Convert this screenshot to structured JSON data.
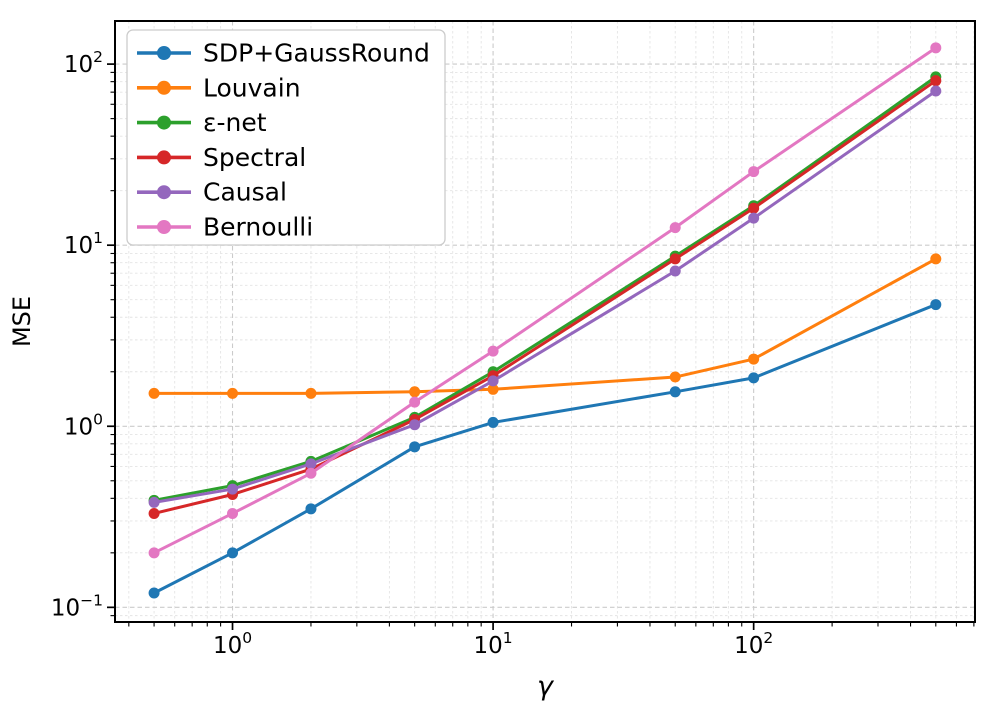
{
  "chart_data": {
    "type": "line",
    "title": "",
    "xlabel": "γ",
    "ylabel": "MSE",
    "xscale": "log",
    "yscale": "log",
    "xlim": [
      0.354,
      707
    ],
    "ylim": [
      0.083,
      173
    ],
    "grid": {
      "major": true,
      "minor": true,
      "style": "dashed"
    },
    "legend_position": "upper left",
    "x": [
      0.5,
      1,
      2,
      5,
      10,
      50,
      100,
      500
    ],
    "series": [
      {
        "name": "SDP+GaussRound",
        "color": "#1f77b4",
        "values": [
          0.12,
          0.2,
          0.35,
          0.77,
          1.05,
          1.55,
          1.85,
          4.7
        ]
      },
      {
        "name": "Louvain",
        "color": "#ff7f0e",
        "values": [
          1.52,
          1.52,
          1.52,
          1.55,
          1.6,
          1.87,
          2.35,
          8.4
        ]
      },
      {
        "name": "ε-net",
        "color": "#2ca02c",
        "values": [
          0.39,
          0.47,
          0.64,
          1.12,
          2.0,
          8.7,
          16.5,
          85
        ]
      },
      {
        "name": "Spectral",
        "color": "#d62728",
        "values": [
          0.33,
          0.42,
          0.58,
          1.09,
          1.9,
          8.4,
          16.0,
          81
        ]
      },
      {
        "name": "Causal",
        "color": "#9467bd",
        "values": [
          0.38,
          0.45,
          0.62,
          1.02,
          1.78,
          7.2,
          14.1,
          71
        ]
      },
      {
        "name": "Bernoulli",
        "color": "#e377c2",
        "values": [
          0.2,
          0.33,
          0.55,
          1.36,
          2.6,
          12.5,
          25.5,
          123
        ]
      }
    ],
    "x_major_ticks": [
      {
        "value": 1,
        "label_base": "10",
        "label_exp": "0"
      },
      {
        "value": 10,
        "label_base": "10",
        "label_exp": "1"
      },
      {
        "value": 100,
        "label_base": "10",
        "label_exp": "2"
      }
    ],
    "y_major_ticks": [
      {
        "value": 0.1,
        "label_base": "10",
        "label_exp": "−1"
      },
      {
        "value": 1,
        "label_base": "10",
        "label_exp": "0"
      },
      {
        "value": 10,
        "label_base": "10",
        "label_exp": "1"
      },
      {
        "value": 100,
        "label_base": "10",
        "label_exp": "2"
      }
    ]
  }
}
